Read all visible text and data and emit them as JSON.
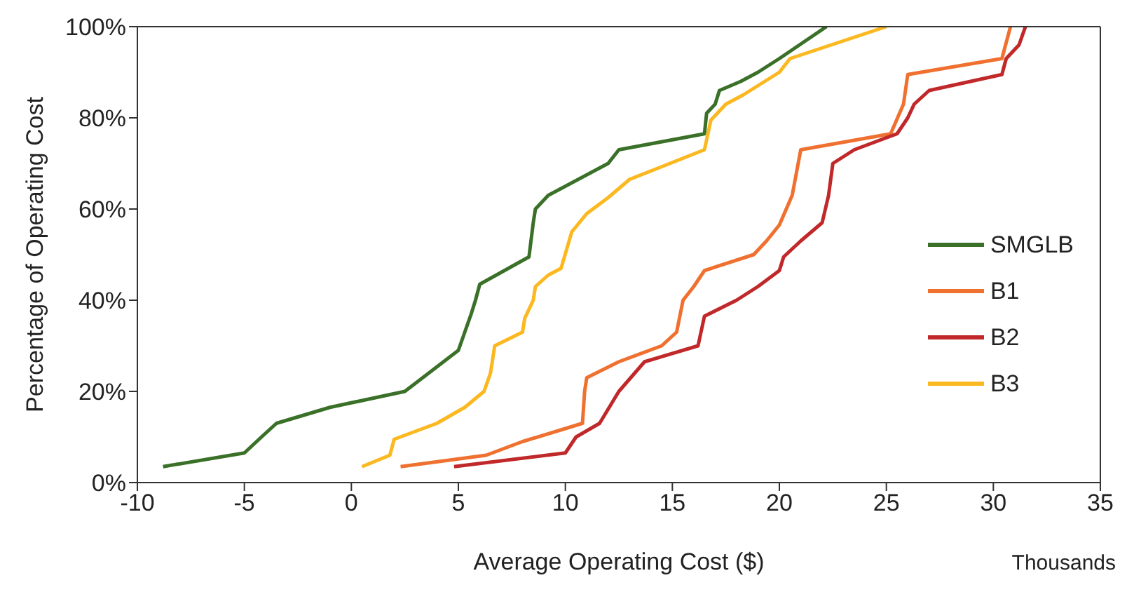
{
  "chart_data": {
    "type": "line",
    "xlabel": "Average Operating Cost ($)",
    "ylabel": "Percentage of Operating Cost",
    "annotations": [
      "Thousands"
    ],
    "xlim": [
      -10,
      35
    ],
    "xticks": [
      -10,
      -5,
      0,
      5,
      10,
      15,
      20,
      25,
      30,
      35
    ],
    "ylim": [
      0,
      100
    ],
    "yticks": [
      {
        "value": 0,
        "label": "0%"
      },
      {
        "value": 20,
        "label": "20%"
      },
      {
        "value": 40,
        "label": "40%"
      },
      {
        "value": 60,
        "label": "60%"
      },
      {
        "value": 80,
        "label": "80%"
      },
      {
        "value": 100,
        "label": "100%"
      }
    ],
    "grid": false,
    "legend": "right",
    "marker": "none",
    "line_style": "solid",
    "series": [
      {
        "name": "SMGLB",
        "color": "#3a7028",
        "x": [
          -8.8,
          -5,
          -4.2,
          -3.5,
          -1,
          2.5,
          5,
          5.3,
          5.6,
          5.8,
          6,
          8.3,
          8.5,
          8.6,
          9.2,
          12,
          12.5,
          16.5,
          16.6,
          17,
          17.2,
          18.2,
          19,
          20,
          22.2
        ],
        "values": [
          3.5,
          6.5,
          10,
          13,
          16.5,
          20,
          29,
          33,
          37,
          40,
          43.5,
          49.5,
          57,
          60,
          63,
          70,
          73,
          76.5,
          81,
          83,
          86,
          88,
          90,
          93,
          100
        ]
      },
      {
        "name": "B1",
        "color": "#f07030",
        "x": [
          2.3,
          6.3,
          8,
          10.8,
          10.9,
          11,
          12.5,
          14.5,
          15.2,
          15.5,
          16,
          16.5,
          18.8,
          19.4,
          20,
          20.6,
          21,
          25.2,
          25.8,
          26,
          30.4,
          30.8
        ],
        "values": [
          3.5,
          6,
          9,
          13,
          20,
          23,
          26.5,
          30,
          33,
          40,
          43,
          46.5,
          50,
          53,
          56.5,
          63,
          73,
          76.5,
          83,
          89.5,
          93,
          100
        ]
      },
      {
        "name": "B2",
        "color": "#c0282a",
        "x": [
          4.8,
          10,
          10.5,
          11.6,
          12.5,
          13.7,
          16.2,
          16.5,
          18,
          19,
          20,
          20.2,
          21,
          22,
          22.3,
          22.5,
          23.5,
          25.5,
          26,
          26.3,
          27,
          30.4,
          30.6,
          31.2,
          31.5
        ],
        "values": [
          3.5,
          6.5,
          10,
          13,
          20,
          26.5,
          30,
          36.5,
          40,
          43,
          46.5,
          49.5,
          53,
          57,
          63,
          70,
          73,
          76.5,
          80,
          83,
          86,
          89.5,
          93,
          96,
          100
        ]
      },
      {
        "name": "B3",
        "color": "#fbb820",
        "x": [
          0.5,
          1.8,
          2,
          4,
          5.3,
          6.2,
          6.5,
          6.7,
          8,
          8.1,
          8.5,
          8.6,
          9.2,
          9.8,
          10.3,
          11,
          12,
          13,
          16.5,
          16.8,
          17.5,
          18.3,
          20,
          20.5,
          25
        ],
        "values": [
          3.5,
          6,
          9.5,
          13,
          16.5,
          20,
          24,
          30,
          33,
          36,
          40,
          43,
          45.5,
          47,
          55,
          59,
          62.5,
          66.5,
          73,
          79.5,
          83,
          85,
          90,
          93,
          100
        ]
      }
    ]
  }
}
